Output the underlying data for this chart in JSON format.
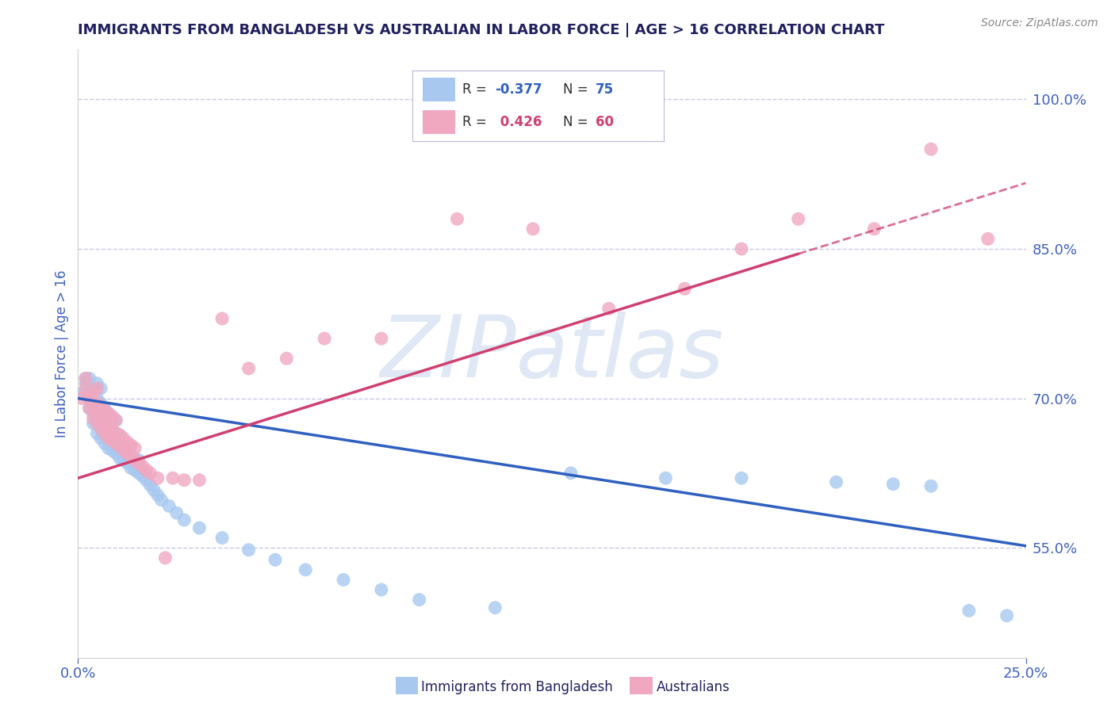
{
  "title": "IMMIGRANTS FROM BANGLADESH VS AUSTRALIAN IN LABOR FORCE | AGE > 16 CORRELATION CHART",
  "source_text": "Source: ZipAtlas.com",
  "ylabel": "In Labor Force | Age > 16",
  "xmin": 0.0,
  "xmax": 0.25,
  "ymin": 0.44,
  "ymax": 1.05,
  "yticks": [
    0.55,
    0.7,
    0.85,
    1.0
  ],
  "ytick_labels": [
    "55.0%",
    "70.0%",
    "85.0%",
    "100.0%"
  ],
  "xticks": [
    0.0,
    0.25
  ],
  "xtick_labels": [
    "0.0%",
    "25.0%"
  ],
  "blue_color": "#a8c8f0",
  "pink_color": "#f0a8c0",
  "blue_line_color": "#3060c0",
  "pink_line_color": "#d04070",
  "watermark": "ZIPatlas",
  "blue_scatter_x": [
    0.001,
    0.002,
    0.002,
    0.003,
    0.003,
    0.003,
    0.004,
    0.004,
    0.004,
    0.004,
    0.005,
    0.005,
    0.005,
    0.005,
    0.005,
    0.006,
    0.006,
    0.006,
    0.006,
    0.006,
    0.007,
    0.007,
    0.007,
    0.007,
    0.008,
    0.008,
    0.008,
    0.008,
    0.009,
    0.009,
    0.009,
    0.009,
    0.01,
    0.01,
    0.01,
    0.01,
    0.011,
    0.011,
    0.011,
    0.012,
    0.012,
    0.013,
    0.013,
    0.014,
    0.014,
    0.015,
    0.015,
    0.016,
    0.016,
    0.017,
    0.018,
    0.019,
    0.02,
    0.021,
    0.022,
    0.024,
    0.026,
    0.028,
    0.032,
    0.038,
    0.045,
    0.052,
    0.06,
    0.07,
    0.08,
    0.09,
    0.11,
    0.13,
    0.155,
    0.175,
    0.2,
    0.215,
    0.225,
    0.235,
    0.245
  ],
  "blue_scatter_y": [
    0.705,
    0.715,
    0.72,
    0.69,
    0.7,
    0.72,
    0.675,
    0.685,
    0.695,
    0.71,
    0.665,
    0.675,
    0.685,
    0.7,
    0.715,
    0.66,
    0.67,
    0.68,
    0.695,
    0.71,
    0.655,
    0.665,
    0.675,
    0.69,
    0.65,
    0.66,
    0.672,
    0.685,
    0.648,
    0.658,
    0.668,
    0.68,
    0.645,
    0.655,
    0.665,
    0.678,
    0.64,
    0.652,
    0.663,
    0.638,
    0.65,
    0.635,
    0.648,
    0.63,
    0.643,
    0.628,
    0.64,
    0.625,
    0.638,
    0.622,
    0.618,
    0.613,
    0.608,
    0.603,
    0.598,
    0.592,
    0.585,
    0.578,
    0.57,
    0.56,
    0.548,
    0.538,
    0.528,
    0.518,
    0.508,
    0.498,
    0.49,
    0.625,
    0.62,
    0.62,
    0.616,
    0.614,
    0.612,
    0.487,
    0.482
  ],
  "pink_scatter_x": [
    0.001,
    0.002,
    0.002,
    0.003,
    0.003,
    0.004,
    0.004,
    0.004,
    0.005,
    0.005,
    0.005,
    0.005,
    0.006,
    0.006,
    0.006,
    0.007,
    0.007,
    0.007,
    0.008,
    0.008,
    0.008,
    0.009,
    0.009,
    0.009,
    0.01,
    0.01,
    0.01,
    0.011,
    0.011,
    0.012,
    0.012,
    0.013,
    0.013,
    0.014,
    0.014,
    0.015,
    0.015,
    0.016,
    0.017,
    0.018,
    0.019,
    0.021,
    0.023,
    0.025,
    0.028,
    0.032,
    0.038,
    0.045,
    0.055,
    0.065,
    0.08,
    0.1,
    0.12,
    0.14,
    0.16,
    0.175,
    0.19,
    0.21,
    0.225,
    0.24
  ],
  "pink_scatter_y": [
    0.7,
    0.71,
    0.72,
    0.69,
    0.7,
    0.68,
    0.692,
    0.705,
    0.675,
    0.685,
    0.695,
    0.71,
    0.67,
    0.68,
    0.692,
    0.665,
    0.675,
    0.688,
    0.66,
    0.672,
    0.685,
    0.658,
    0.668,
    0.682,
    0.655,
    0.665,
    0.678,
    0.652,
    0.663,
    0.648,
    0.66,
    0.645,
    0.656,
    0.642,
    0.653,
    0.638,
    0.65,
    0.635,
    0.632,
    0.628,
    0.625,
    0.62,
    0.54,
    0.62,
    0.618,
    0.618,
    0.78,
    0.73,
    0.74,
    0.76,
    0.76,
    0.88,
    0.87,
    0.79,
    0.81,
    0.85,
    0.88,
    0.87,
    0.95,
    0.86
  ],
  "blue_line_x": [
    0.0,
    0.25
  ],
  "blue_line_y": [
    0.7,
    0.552
  ],
  "pink_line_x": [
    0.0,
    0.19
  ],
  "pink_line_y": [
    0.62,
    0.845
  ],
  "pink_dashed_line_x": [
    0.19,
    0.25
  ],
  "pink_dashed_line_y": [
    0.845,
    0.916
  ],
  "grid_color": "#c8c8e8",
  "title_color": "#202060",
  "axis_label_color": "#4060c0",
  "tick_color": "#4060c0",
  "source_color": "#888888"
}
